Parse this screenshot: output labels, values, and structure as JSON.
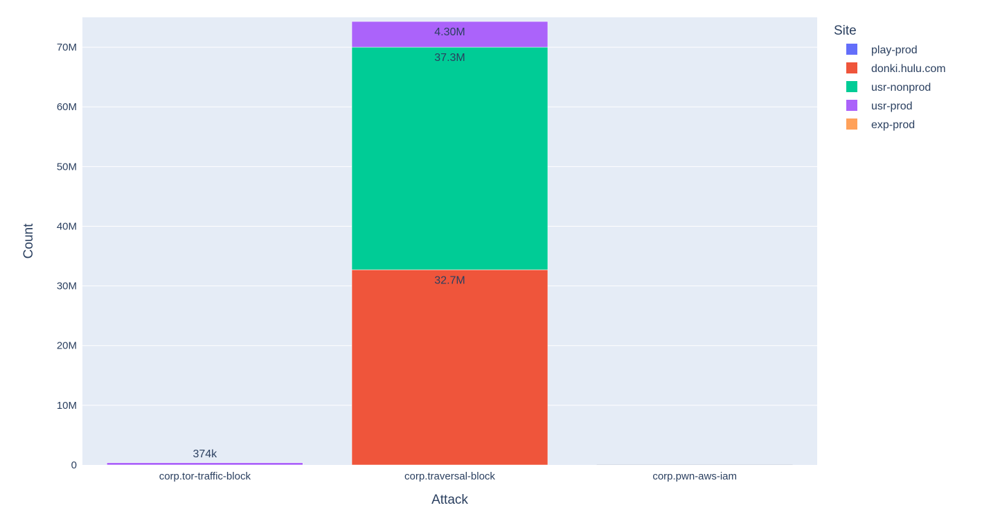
{
  "chart_data": {
    "type": "bar",
    "barmode": "stack",
    "categories": [
      "corp.tor-traffic-block",
      "corp.traversal-block",
      "corp.pwn-aws-iam"
    ],
    "series": [
      {
        "name": "play-prod",
        "color": "#636efa",
        "values": [
          0,
          0,
          0
        ]
      },
      {
        "name": "donki.hulu.com",
        "color": "#ef553b",
        "values": [
          0,
          32700000,
          0
        ]
      },
      {
        "name": "usr-nonprod",
        "color": "#00cc96",
        "values": [
          0,
          37300000,
          0
        ]
      },
      {
        "name": "usr-prod",
        "color": "#ab63fa",
        "values": [
          374000,
          4300000,
          0
        ]
      },
      {
        "name": "exp-prod",
        "color": "#ffa15a",
        "values": [
          0,
          0,
          0
        ]
      }
    ],
    "data_labels": [
      {
        "category": "corp.tor-traffic-block",
        "series": "usr-prod",
        "text": "374k"
      },
      {
        "category": "corp.traversal-block",
        "series": "donki.hulu.com",
        "text": "32.7M"
      },
      {
        "category": "corp.traversal-block",
        "series": "usr-nonprod",
        "text": "37.3M"
      },
      {
        "category": "corp.traversal-block",
        "series": "usr-prod",
        "text": "4.30M"
      }
    ],
    "xlabel": "Attack",
    "ylabel": "Count",
    "ylim": [
      0,
      75000000
    ],
    "yticks": [
      {
        "value": 0,
        "label": "0"
      },
      {
        "value": 10000000,
        "label": "10M"
      },
      {
        "value": 20000000,
        "label": "20M"
      },
      {
        "value": 30000000,
        "label": "30M"
      },
      {
        "value": 40000000,
        "label": "40M"
      },
      {
        "value": 50000000,
        "label": "50M"
      },
      {
        "value": 60000000,
        "label": "60M"
      },
      {
        "value": 70000000,
        "label": "70M"
      }
    ],
    "legend": {
      "title": "Site",
      "position": "top-right"
    },
    "grid": true,
    "plot_background": "#e5ecf6"
  }
}
